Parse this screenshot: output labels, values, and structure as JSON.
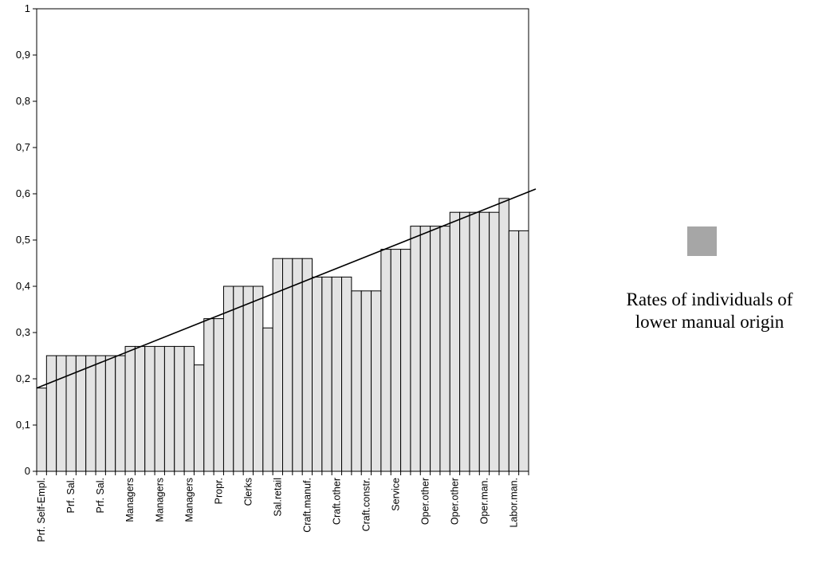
{
  "chart_data": {
    "type": "bar",
    "ylim": [
      0,
      1
    ],
    "y_ticks": [
      "0",
      "0,1",
      "0,2",
      "0,3",
      "0,4",
      "0,5",
      "0,6",
      "0,7",
      "0,8",
      "0,9",
      "1"
    ],
    "values": [
      0.18,
      0.25,
      0.25,
      0.25,
      0.25,
      0.25,
      0.25,
      0.25,
      0.25,
      0.27,
      0.27,
      0.27,
      0.27,
      0.27,
      0.27,
      0.27,
      0.23,
      0.33,
      0.33,
      0.4,
      0.4,
      0.4,
      0.4,
      0.31,
      0.46,
      0.46,
      0.46,
      0.46,
      0.42,
      0.42,
      0.42,
      0.42,
      0.39,
      0.39,
      0.39,
      0.48,
      0.48,
      0.48,
      0.53,
      0.53,
      0.53,
      0.53,
      0.56,
      0.56,
      0.56,
      0.56,
      0.56,
      0.59,
      0.52,
      0.52
    ],
    "category_labels": [
      {
        "index": 1,
        "text": "Prf. Self-Empl."
      },
      {
        "index": 4,
        "text": "Prf. Sal."
      },
      {
        "index": 7,
        "text": "Prf. Sal."
      },
      {
        "index": 10,
        "text": "Managers"
      },
      {
        "index": 13,
        "text": "Managers"
      },
      {
        "index": 16,
        "text": "Managers"
      },
      {
        "index": 19,
        "text": "Propr."
      },
      {
        "index": 22,
        "text": "Clerks"
      },
      {
        "index": 25,
        "text": "Sal.retail"
      },
      {
        "index": 28,
        "text": "Craft.manuf."
      },
      {
        "index": 31,
        "text": "Craft.other"
      },
      {
        "index": 34,
        "text": "Craft.constr."
      },
      {
        "index": 37,
        "text": "Service"
      },
      {
        "index": 40,
        "text": "Oper.other"
      },
      {
        "index": 43,
        "text": "Oper.other"
      },
      {
        "index": 46,
        "text": "Oper.man."
      },
      {
        "index": 49,
        "text": "Labor.man."
      }
    ],
    "trendline": {
      "start": 0.18,
      "end": 0.61
    },
    "bar_color": "#e3e3e3",
    "legend": {
      "swatch_color": "#a6a6a6",
      "line1": "Rates of individuals of",
      "line2": "lower manual origin",
      "position": "right"
    }
  }
}
